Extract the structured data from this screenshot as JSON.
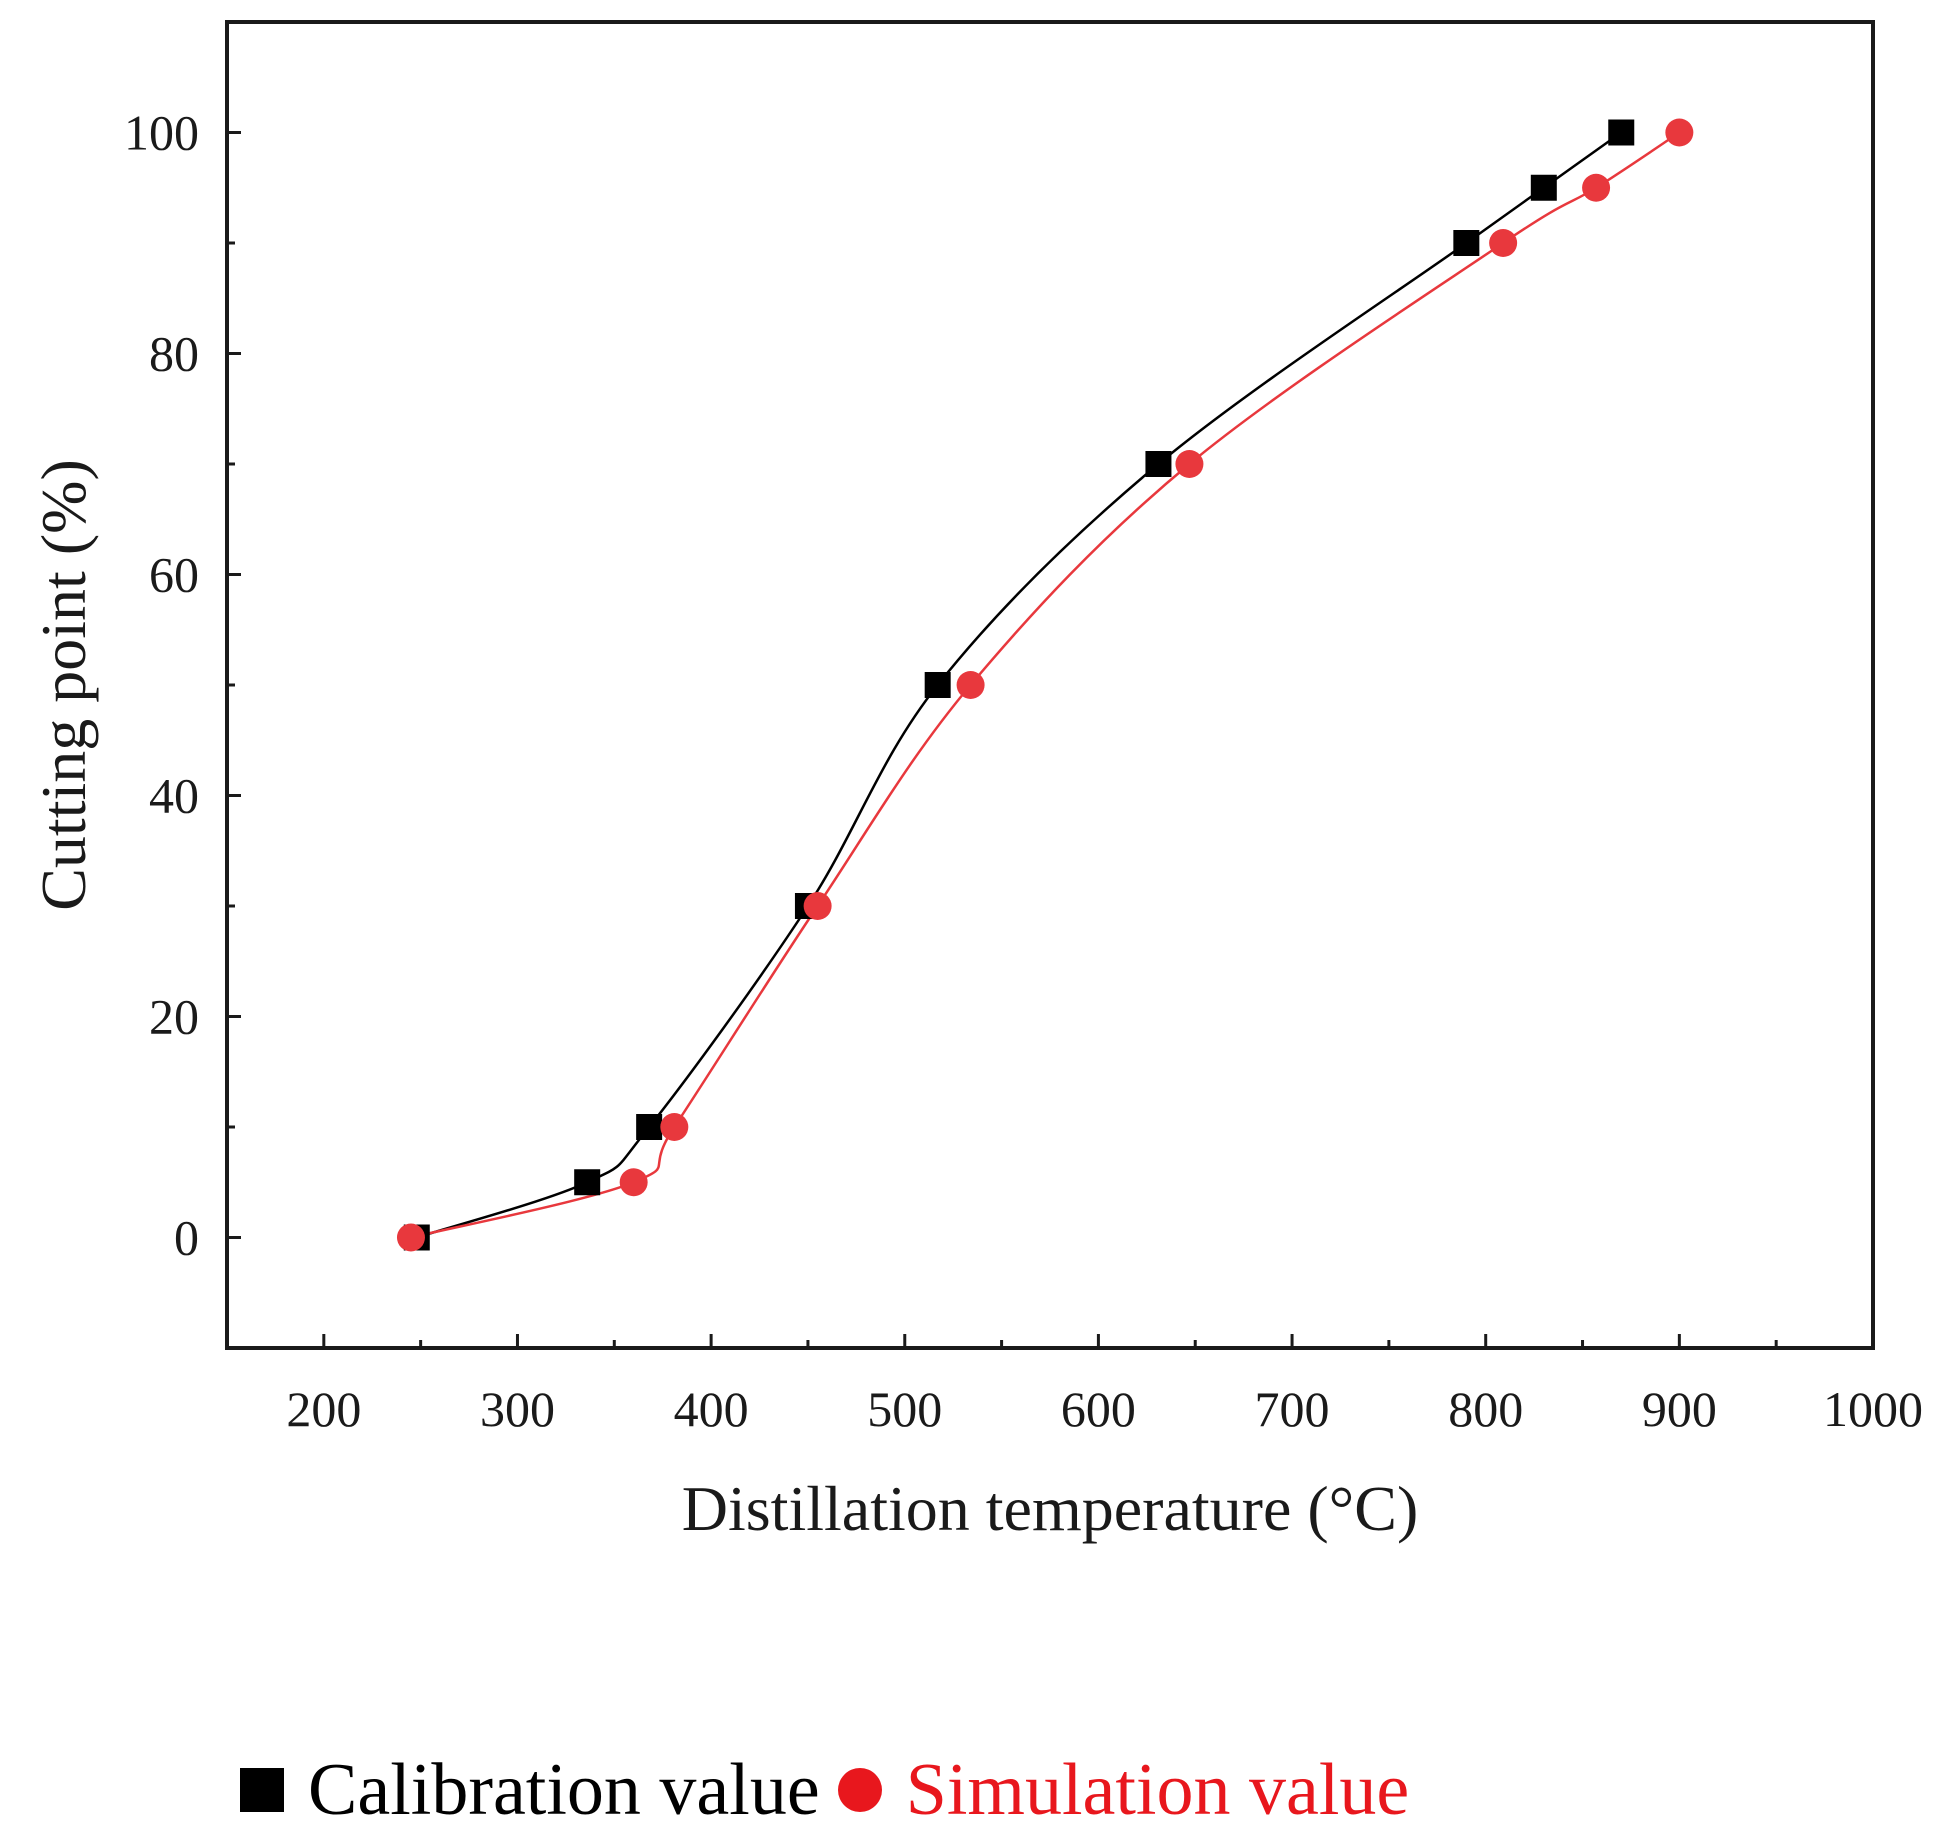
{
  "chart_data": {
    "type": "line",
    "title": "",
    "xlabel": "Distillation temperature (°C)",
    "ylabel": "Cutting point (%)",
    "xlim": [
      150,
      1000
    ],
    "ylim": [
      -10,
      110
    ],
    "xticks": [
      200,
      300,
      400,
      500,
      600,
      700,
      800,
      900,
      1000
    ],
    "yticks": [
      0,
      20,
      40,
      60,
      80,
      100
    ],
    "grid": false,
    "legend_position": "bottom",
    "series": [
      {
        "name": "Calibration value",
        "marker": "square",
        "color": "#000000",
        "x": [
          248,
          336,
          368,
          450,
          517,
          631,
          790,
          830,
          870
        ],
        "y": [
          0,
          5,
          10,
          30,
          50,
          70,
          90,
          95,
          100
        ]
      },
      {
        "name": "Simulation value",
        "marker": "circle",
        "color": "#e8383d",
        "x": [
          245,
          360,
          381,
          455,
          534,
          647,
          809,
          857,
          900
        ],
        "y": [
          0,
          5,
          10,
          30,
          50,
          70,
          90,
          95,
          100
        ]
      }
    ]
  },
  "legend": {
    "calibration_label": "Calibration value",
    "simulation_label": "Simulation value",
    "simulation_text_color": "#e8171d"
  }
}
